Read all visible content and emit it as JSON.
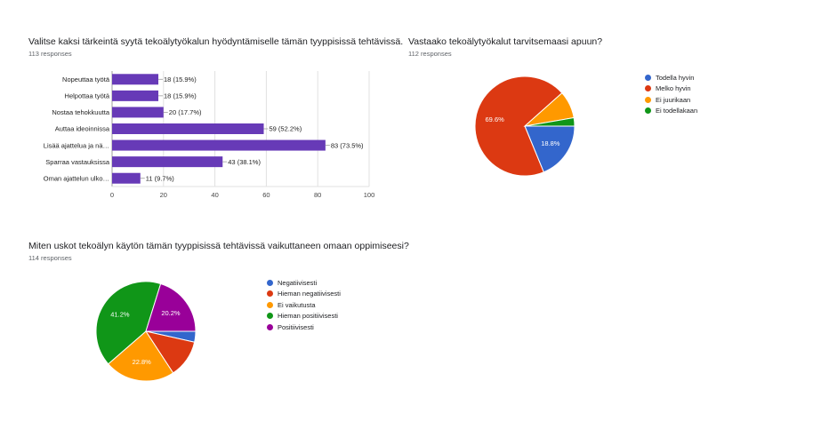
{
  "charts": [
    {
      "title": "Valitse kaksi tärkeintä syytä tekoälytyökalun hyödyntämiselle tämän tyyppisissä tehtävissä.",
      "responses": "113 responses"
    },
    {
      "title": "Vastaako tekoälytyökalut tarvitsemaasi apuun?",
      "responses": "112 responses"
    },
    {
      "title": "Miten uskot tekoälyn käytön tämän tyyppisissä tehtävissä vaikuttaneen omaan oppimiseesi?",
      "responses": "114 responses"
    }
  ],
  "chart_data": [
    {
      "type": "bar",
      "orientation": "horizontal",
      "categories": [
        "Nopeuttaa työtä",
        "Helpottaa työtä",
        "Nostaa tehokkuutta",
        "Auttaa ideoinnissa",
        "Lisää ajattelua ja nä…",
        "Sparraa vastauksissa",
        "Oman ajattelun ulko…"
      ],
      "values": [
        18,
        18,
        20,
        59,
        83,
        43,
        11
      ],
      "value_labels": [
        "18 (15.9%)",
        "18 (15.9%)",
        "20 (17.7%)",
        "59 (52.2%)",
        "83 (73.5%)",
        "43 (38.1%)",
        "11 (9.7%)"
      ],
      "xlim": [
        0,
        100
      ],
      "xticks": [
        0,
        20,
        40,
        60,
        80,
        100
      ],
      "grid": true,
      "color": "#673ab7"
    },
    {
      "type": "pie",
      "labels": [
        "Todella hyvin",
        "Melko hyvin",
        "Ei juurikaan",
        "Ei todellakaan"
      ],
      "values": [
        18.8,
        69.6,
        8.9,
        2.7
      ],
      "slice_labels": [
        "18.8%",
        "69.6%",
        "",
        ""
      ],
      "colors": [
        "#3366cc",
        "#dc3912",
        "#ff9900",
        "#109618"
      ],
      "legend": "right"
    },
    {
      "type": "pie",
      "labels": [
        "Negatiivisesti",
        "Hieman negatiivisesti",
        "Ei vaikutusta",
        "Hieman positiivisesti",
        "Positiivisesti"
      ],
      "values": [
        3.5,
        12.3,
        22.8,
        41.2,
        20.2
      ],
      "slice_labels": [
        "",
        "",
        "22.8%",
        "41.2%",
        "20.2%"
      ],
      "colors": [
        "#3366cc",
        "#dc3912",
        "#ff9900",
        "#109618",
        "#990099"
      ],
      "legend": "right"
    }
  ]
}
